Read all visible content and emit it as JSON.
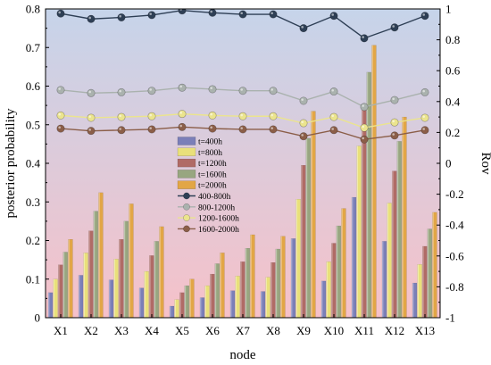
{
  "chart_data": {
    "type": "bar",
    "xlabel": "node",
    "ylabel": "posterior probability",
    "y2label": "Rov",
    "ylim": [
      0,
      0.8
    ],
    "yticks": [
      0,
      0.1,
      0.2,
      0.3,
      0.4,
      0.5,
      0.6,
      0.7,
      0.8
    ],
    "ytick_labels": [
      "0",
      "0.1",
      "0.2",
      "0.3",
      "0.4",
      "0.5",
      "0.6",
      "0.7",
      "0.8"
    ],
    "y2lim": [
      -1,
      1
    ],
    "y2ticks": [
      -1,
      -0.8,
      -0.6,
      -0.4,
      -0.2,
      0,
      0.2,
      0.4,
      0.6,
      0.8,
      1
    ],
    "y2tick_labels": [
      "-1",
      "-0.8",
      "-0.6",
      "-0.4",
      "-0.2",
      "0",
      "0.2",
      "0.4",
      "0.6",
      "0.8",
      "1"
    ],
    "background_gradient": [
      "#c6d4ea",
      "#f6c1c9"
    ],
    "categories": [
      "X1",
      "X2",
      "X3",
      "X4",
      "X5",
      "X6",
      "X7",
      "X8",
      "X9",
      "X10",
      "X11",
      "X12",
      "X13"
    ],
    "series": [
      {
        "name": "t=400h",
        "color": "#7b7fb8",
        "values": [
          0.065,
          0.11,
          0.098,
          0.077,
          0.03,
          0.052,
          0.07,
          0.068,
          0.205,
          0.095,
          0.312,
          0.198,
          0.09
        ]
      },
      {
        "name": "t=800h",
        "color": "#e9e07a",
        "values": [
          0.1,
          0.168,
          0.152,
          0.12,
          0.047,
          0.083,
          0.108,
          0.105,
          0.307,
          0.145,
          0.445,
          0.297,
          0.138
        ]
      },
      {
        "name": "t=1200h",
        "color": "#b06b66",
        "values": [
          0.137,
          0.225,
          0.203,
          0.161,
          0.065,
          0.113,
          0.145,
          0.143,
          0.395,
          0.193,
          0.54,
          0.38,
          0.185
        ]
      },
      {
        "name": "t=1600h",
        "color": "#98a680",
        "values": [
          0.17,
          0.276,
          0.25,
          0.198,
          0.083,
          0.14,
          0.18,
          0.178,
          0.465,
          0.238,
          0.636,
          0.457,
          0.23
        ]
      },
      {
        "name": "t=2000h",
        "color": "#e2a646",
        "values": [
          0.203,
          0.324,
          0.295,
          0.236,
          0.1,
          0.168,
          0.215,
          0.211,
          0.535,
          0.283,
          0.706,
          0.52,
          0.273
        ]
      }
    ],
    "line_series": [
      {
        "name": "400-800h",
        "color": "#2e3f55",
        "values": [
          0.97,
          0.935,
          0.945,
          0.96,
          0.99,
          0.975,
          0.965,
          0.965,
          0.875,
          0.955,
          0.81,
          0.88,
          0.955
        ]
      },
      {
        "name": "800-1200h",
        "color": "#aab2ae",
        "values": [
          0.475,
          0.455,
          0.46,
          0.47,
          0.49,
          0.48,
          0.47,
          0.47,
          0.405,
          0.465,
          0.365,
          0.41,
          0.46
        ]
      },
      {
        "name": "1200-1600h",
        "color": "#ebe48e",
        "values": [
          0.31,
          0.295,
          0.3,
          0.305,
          0.32,
          0.31,
          0.305,
          0.305,
          0.26,
          0.3,
          0.23,
          0.265,
          0.295
        ]
      },
      {
        "name": "1600-2000h",
        "color": "#8b5e48",
        "values": [
          0.225,
          0.21,
          0.215,
          0.22,
          0.235,
          0.225,
          0.22,
          0.22,
          0.175,
          0.215,
          0.155,
          0.18,
          0.215
        ]
      }
    ],
    "legend_position": "center"
  }
}
